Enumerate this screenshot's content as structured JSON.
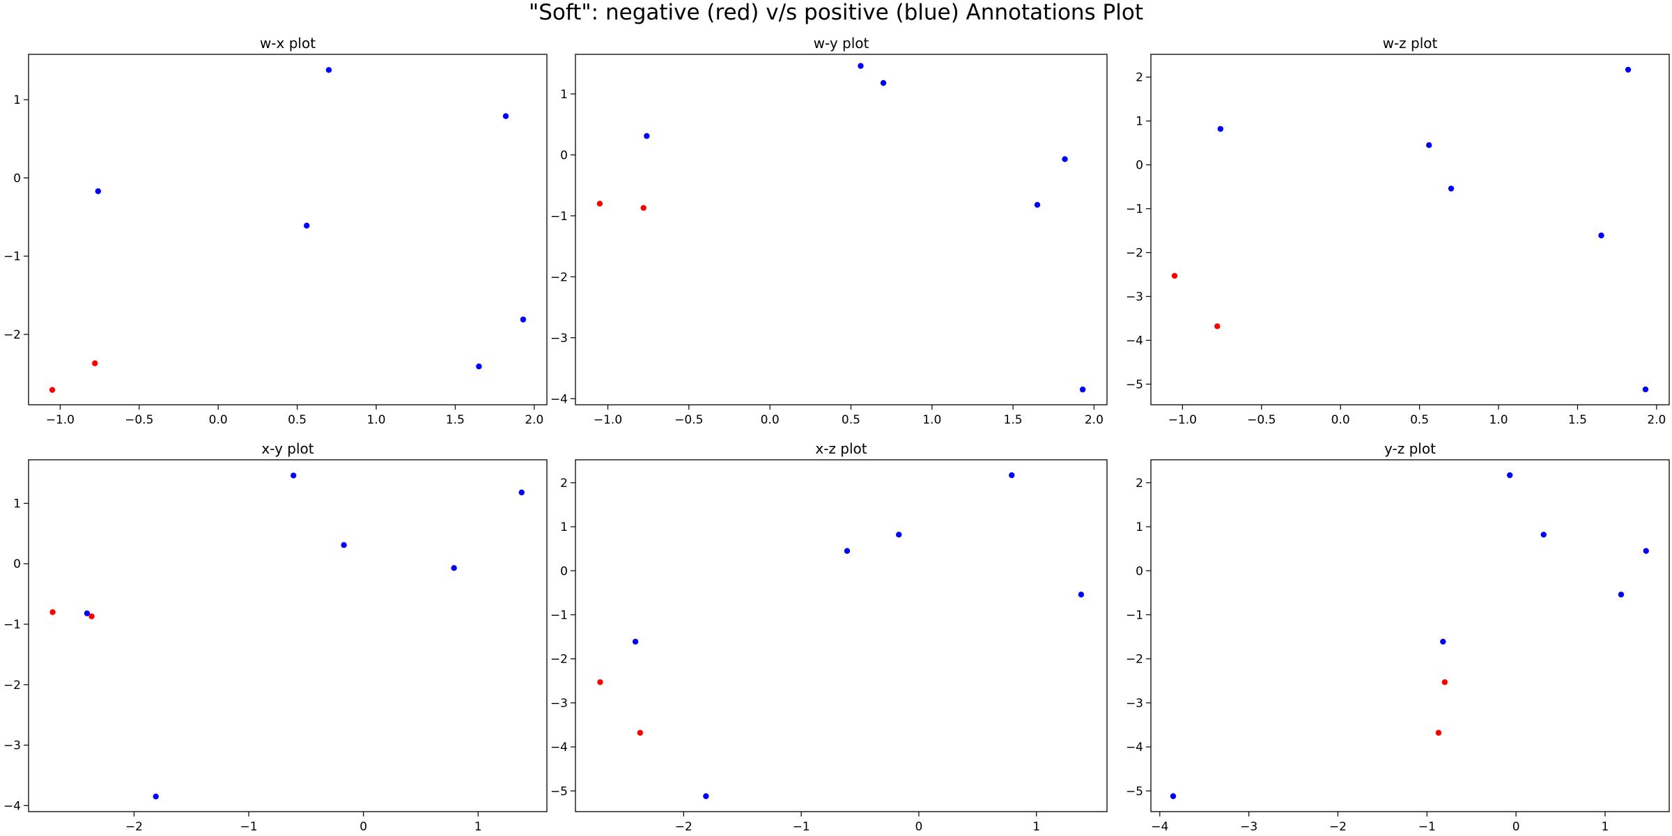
{
  "suptitle": "\"Soft\": negative (red) v/s positive (blue) Annotations Plot",
  "colors": {
    "negative": "#ff0000",
    "positive": "#0000ff",
    "axis": "#000000"
  },
  "chart_data": [
    {
      "type": "scatter",
      "title": "w-x plot",
      "xlabel": "",
      "ylabel": "",
      "xlim": [
        -1.2,
        2.08
      ],
      "ylim": [
        -2.9,
        1.58
      ],
      "xticks": [
        -1.0,
        -0.5,
        0.0,
        0.5,
        1.0,
        1.5,
        2.0
      ],
      "xtick_labels": [
        "−1.0",
        "−0.5",
        "0.0",
        "0.5",
        "1.0",
        "1.5",
        "2.0"
      ],
      "yticks": [
        -2,
        -1,
        0,
        1
      ],
      "ytick_labels": [
        "−2",
        "−1",
        "0",
        "1"
      ],
      "grid": false,
      "series": [
        {
          "color": "#0000ff",
          "points": [
            [
              -0.76,
              -0.17
            ],
            [
              0.56,
              -0.61
            ],
            [
              0.7,
              1.38
            ],
            [
              1.65,
              -2.41
            ],
            [
              1.82,
              0.79
            ],
            [
              1.93,
              -1.81
            ]
          ]
        },
        {
          "color": "#ff0000",
          "points": [
            [
              -1.05,
              -2.71
            ],
            [
              -0.78,
              -2.37
            ]
          ]
        }
      ]
    },
    {
      "type": "scatter",
      "title": "w-y plot",
      "xlabel": "",
      "ylabel": "",
      "xlim": [
        -1.2,
        2.08
      ],
      "ylim": [
        -4.1,
        1.65
      ],
      "xticks": [
        -1.0,
        -0.5,
        0.0,
        0.5,
        1.0,
        1.5,
        2.0
      ],
      "xtick_labels": [
        "−1.0",
        "−0.5",
        "0.0",
        "0.5",
        "1.0",
        "1.5",
        "2.0"
      ],
      "yticks": [
        -4,
        -3,
        -2,
        -1,
        0,
        1
      ],
      "ytick_labels": [
        "−4",
        "−3",
        "−2",
        "−1",
        "0",
        "1"
      ],
      "grid": false,
      "series": [
        {
          "color": "#0000ff",
          "points": [
            [
              -0.76,
              0.31
            ],
            [
              0.56,
              1.46
            ],
            [
              0.7,
              1.18
            ],
            [
              1.65,
              -0.82
            ],
            [
              1.82,
              -0.07
            ],
            [
              1.93,
              -3.85
            ]
          ]
        },
        {
          "color": "#ff0000",
          "points": [
            [
              -1.05,
              -0.8
            ],
            [
              -0.78,
              -0.87
            ]
          ]
        }
      ]
    },
    {
      "type": "scatter",
      "title": "w-z plot",
      "xlabel": "",
      "ylabel": "",
      "xlim": [
        -1.2,
        2.08
      ],
      "ylim": [
        -5.47,
        2.52
      ],
      "xticks": [
        -1.0,
        -0.5,
        0.0,
        0.5,
        1.0,
        1.5,
        2.0
      ],
      "xtick_labels": [
        "−1.0",
        "−0.5",
        "0.0",
        "0.5",
        "1.0",
        "1.5",
        "2.0"
      ],
      "yticks": [
        -5,
        -4,
        -3,
        -2,
        -1,
        0,
        1,
        2
      ],
      "ytick_labels": [
        "−5",
        "−4",
        "−3",
        "−2",
        "−1",
        "0",
        "1",
        "2"
      ],
      "grid": false,
      "series": [
        {
          "color": "#0000ff",
          "points": [
            [
              -0.76,
              0.82
            ],
            [
              0.56,
              0.45
            ],
            [
              0.7,
              -0.54
            ],
            [
              1.65,
              -1.61
            ],
            [
              1.82,
              2.17
            ],
            [
              1.93,
              -5.12
            ]
          ]
        },
        {
          "color": "#ff0000",
          "points": [
            [
              -1.05,
              -2.53
            ],
            [
              -0.78,
              -3.68
            ]
          ]
        }
      ]
    },
    {
      "type": "scatter",
      "title": "x-y plot",
      "xlabel": "",
      "ylabel": "",
      "xlim": [
        -2.92,
        1.6
      ],
      "ylim": [
        -4.1,
        1.72
      ],
      "xticks": [
        -2,
        -1,
        0,
        1
      ],
      "xtick_labels": [
        "−2",
        "−1",
        "0",
        "1"
      ],
      "yticks": [
        -4,
        -3,
        -2,
        -1,
        0,
        1
      ],
      "ytick_labels": [
        "−4",
        "−3",
        "−2",
        "−1",
        "0",
        "1"
      ],
      "grid": false,
      "series": [
        {
          "color": "#0000ff",
          "points": [
            [
              -2.41,
              -0.82
            ],
            [
              -1.81,
              -3.85
            ],
            [
              -0.61,
              1.46
            ],
            [
              -0.17,
              0.31
            ],
            [
              0.79,
              -0.07
            ],
            [
              1.38,
              1.18
            ]
          ]
        },
        {
          "color": "#ff0000",
          "points": [
            [
              -2.71,
              -0.8
            ],
            [
              -2.37,
              -0.87
            ]
          ]
        }
      ]
    },
    {
      "type": "scatter",
      "title": "x-z plot",
      "xlabel": "",
      "ylabel": "",
      "xlim": [
        -2.92,
        1.6
      ],
      "ylim": [
        -5.47,
        2.52
      ],
      "xticks": [
        -2,
        -1,
        0,
        1
      ],
      "xtick_labels": [
        "−2",
        "−1",
        "0",
        "1"
      ],
      "yticks": [
        -5,
        -4,
        -3,
        -2,
        -1,
        0,
        1,
        2
      ],
      "ytick_labels": [
        "−5",
        "−4",
        "−3",
        "−2",
        "−1",
        "0",
        "1",
        "2"
      ],
      "grid": false,
      "series": [
        {
          "color": "#0000ff",
          "points": [
            [
              -2.41,
              -1.61
            ],
            [
              -1.81,
              -5.12
            ],
            [
              -0.61,
              0.45
            ],
            [
              -0.17,
              0.82
            ],
            [
              0.79,
              2.17
            ],
            [
              1.38,
              -0.54
            ]
          ]
        },
        {
          "color": "#ff0000",
          "points": [
            [
              -2.71,
              -2.53
            ],
            [
              -2.37,
              -3.68
            ]
          ]
        }
      ]
    },
    {
      "type": "scatter",
      "title": "y-z plot",
      "xlabel": "",
      "ylabel": "",
      "xlim": [
        -4.1,
        1.72
      ],
      "ylim": [
        -5.47,
        2.52
      ],
      "xticks": [
        -4,
        -3,
        -2,
        -1,
        0,
        1
      ],
      "xtick_labels": [
        "−4",
        "−3",
        "−2",
        "−1",
        "0",
        "1"
      ],
      "yticks": [
        -5,
        -4,
        -3,
        -2,
        -1,
        0,
        1,
        2
      ],
      "ytick_labels": [
        "−5",
        "−4",
        "−3",
        "−2",
        "−1",
        "0",
        "1",
        "2"
      ],
      "grid": false,
      "series": [
        {
          "color": "#0000ff",
          "points": [
            [
              -3.85,
              -5.12
            ],
            [
              -0.82,
              -1.61
            ],
            [
              -0.07,
              2.17
            ],
            [
              0.31,
              0.82
            ],
            [
              1.18,
              -0.54
            ],
            [
              1.46,
              0.45
            ]
          ]
        },
        {
          "color": "#ff0000",
          "points": [
            [
              -0.8,
              -2.53
            ],
            [
              -0.87,
              -3.68
            ]
          ]
        }
      ]
    }
  ]
}
